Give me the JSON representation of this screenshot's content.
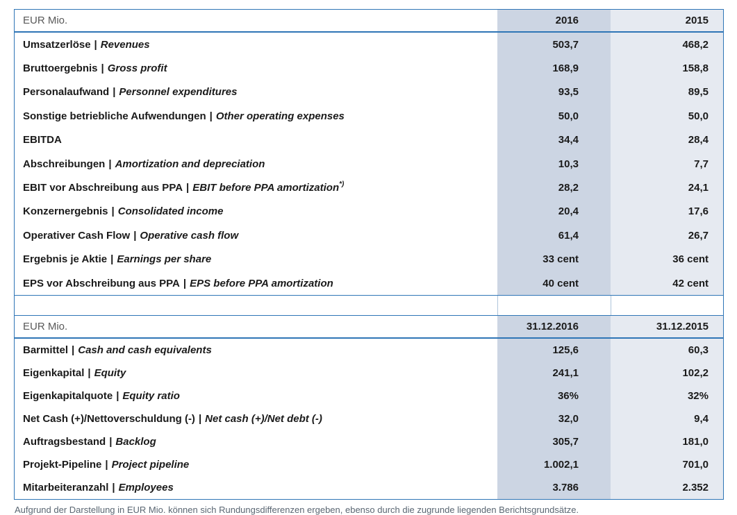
{
  "colors": {
    "border_blue": "#2e75b6",
    "col_2016_fill": "#ccd5e3",
    "col_2015_fill": "#e6eaf1",
    "label_text": "#1a1a1a",
    "unit_label_text": "#595959",
    "footnote_text": "#5a6672"
  },
  "table1": {
    "unit_label": "EUR Mio.",
    "columns": [
      "2016",
      "2015"
    ],
    "rows": [
      {
        "de": "Umsatzerlöse",
        "sep": "|",
        "en": "Revenues",
        "values": [
          "503,7",
          "468,2"
        ]
      },
      {
        "de": "Bruttoergebnis",
        "sep": "|",
        "en": "Gross profit",
        "values": [
          "168,9",
          "158,8"
        ]
      },
      {
        "de": "Personalaufwand",
        "sep": "|",
        "en": "Personnel expenditures",
        "values": [
          "93,5",
          "89,5"
        ]
      },
      {
        "de": "Sonstige betriebliche Aufwendungen",
        "sep": "|",
        "en": "Other operating expenses",
        "values": [
          "50,0",
          "50,0"
        ]
      },
      {
        "de": "EBITDA",
        "sep": "",
        "en": "",
        "values": [
          "34,4",
          "28,4"
        ]
      },
      {
        "de": "Abschreibungen",
        "sep": "|",
        "en": "Amortization and depreciation",
        "values": [
          "10,3",
          "7,7"
        ]
      },
      {
        "de": "EBIT vor Abschreibung aus PPA",
        "sep": "|",
        "en": "EBIT before PPA amortization",
        "sup": "*)",
        "values": [
          "28,2",
          "24,1"
        ]
      },
      {
        "de": "Konzernergebnis",
        "sep": "|",
        "en": "Consolidated income",
        "values": [
          "20,4",
          "17,6"
        ]
      },
      {
        "de": "Operativer Cash Flow",
        "sep": "|",
        "en": "Operative cash flow",
        "values": [
          "61,4",
          "26,7"
        ]
      },
      {
        "de": "Ergebnis je Aktie",
        "sep": "|",
        "en": "Earnings per share",
        "values": [
          "33 cent",
          "36 cent"
        ]
      },
      {
        "de": "EPS vor Abschreibung aus PPA",
        "sep": "|",
        "en": "EPS before PPA amortization",
        "values": [
          "40 cent",
          "42 cent"
        ]
      }
    ]
  },
  "table2": {
    "unit_label": "EUR Mio.",
    "columns": [
      "31.12.2016",
      "31.12.2015"
    ],
    "rows": [
      {
        "de": "Barmittel",
        "sep": "|",
        "en": "Cash and cash equivalents",
        "values": [
          "125,6",
          "60,3"
        ]
      },
      {
        "de": "Eigenkapital",
        "sep": "|",
        "en": "Equity",
        "values": [
          "241,1",
          "102,2"
        ]
      },
      {
        "de": "Eigenkapitalquote",
        "sep": "|",
        "en": "Equity ratio",
        "values": [
          "36%",
          "32%"
        ]
      },
      {
        "de": "Net Cash (+)/Nettoverschuldung (-)",
        "sep": "|",
        "en": "Net cash (+)/Net debt (-)",
        "values": [
          "32,0",
          "9,4"
        ]
      },
      {
        "de": "Auftragsbestand",
        "sep": "|",
        "en": "Backlog",
        "values": [
          "305,7",
          "181,0"
        ]
      },
      {
        "de": "Projekt-Pipeline",
        "sep": "|",
        "en": "Project pipeline",
        "values": [
          "1.002,1",
          "701,0"
        ]
      },
      {
        "de": "Mitarbeiteranzahl",
        "sep": "|",
        "en": "Employees",
        "values": [
          "3.786",
          "2.352"
        ]
      }
    ]
  },
  "footnote": "Aufgrund der Darstellung in EUR Mio. können sich Rundungsdifferenzen ergeben, ebenso durch die zugrunde liegenden Berichtsgrundsätze."
}
